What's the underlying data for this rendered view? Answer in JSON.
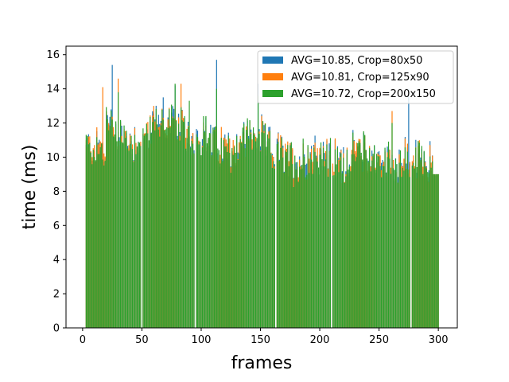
{
  "chart_data": {
    "type": "bar",
    "title": "",
    "xlabel": "frames",
    "ylabel": "time (ms)",
    "xlim": [
      -14,
      316
    ],
    "ylim": [
      0,
      16.5
    ],
    "x_ticks": [
      0,
      50,
      100,
      150,
      200,
      250,
      300
    ],
    "y_ticks": [
      0,
      2,
      4,
      6,
      8,
      10,
      12,
      14,
      16
    ],
    "grid": false,
    "legend_position": "top-right",
    "x": [
      3,
      300
    ],
    "series": [
      {
        "name": "AVG=10.85, Crop=80x50",
        "color": "#1f77b4",
        "avg": 10.85,
        "peaks": [
          [
            25,
            15.4
          ],
          [
            113,
            15.7
          ],
          [
            148,
            14.3
          ],
          [
            275,
            14.0
          ],
          [
            78,
            14.2
          ],
          [
            68,
            13.5
          ]
        ]
      },
      {
        "name": "AVG=10.81, Crop=125x90",
        "color": "#ff7f0e",
        "avg": 10.81,
        "peaks": [
          [
            17,
            14.1
          ],
          [
            83,
            14.3
          ],
          [
            30,
            14.6
          ],
          [
            60,
            13.0
          ],
          [
            261,
            12.7
          ],
          [
            165,
            11.4
          ]
        ]
      },
      {
        "name": "AVG=10.72, Crop=200x150",
        "color": "#2ca02c",
        "avg": 10.72,
        "peaks": [
          [
            78,
            14.3
          ],
          [
            90,
            13.3
          ],
          [
            113,
            14.0
          ],
          [
            148,
            13.6
          ],
          [
            30,
            13.8
          ],
          [
            261,
            12.0
          ]
        ]
      }
    ],
    "gaps_at_frames": [
      50,
      95,
      163,
      210,
      277
    ]
  }
}
